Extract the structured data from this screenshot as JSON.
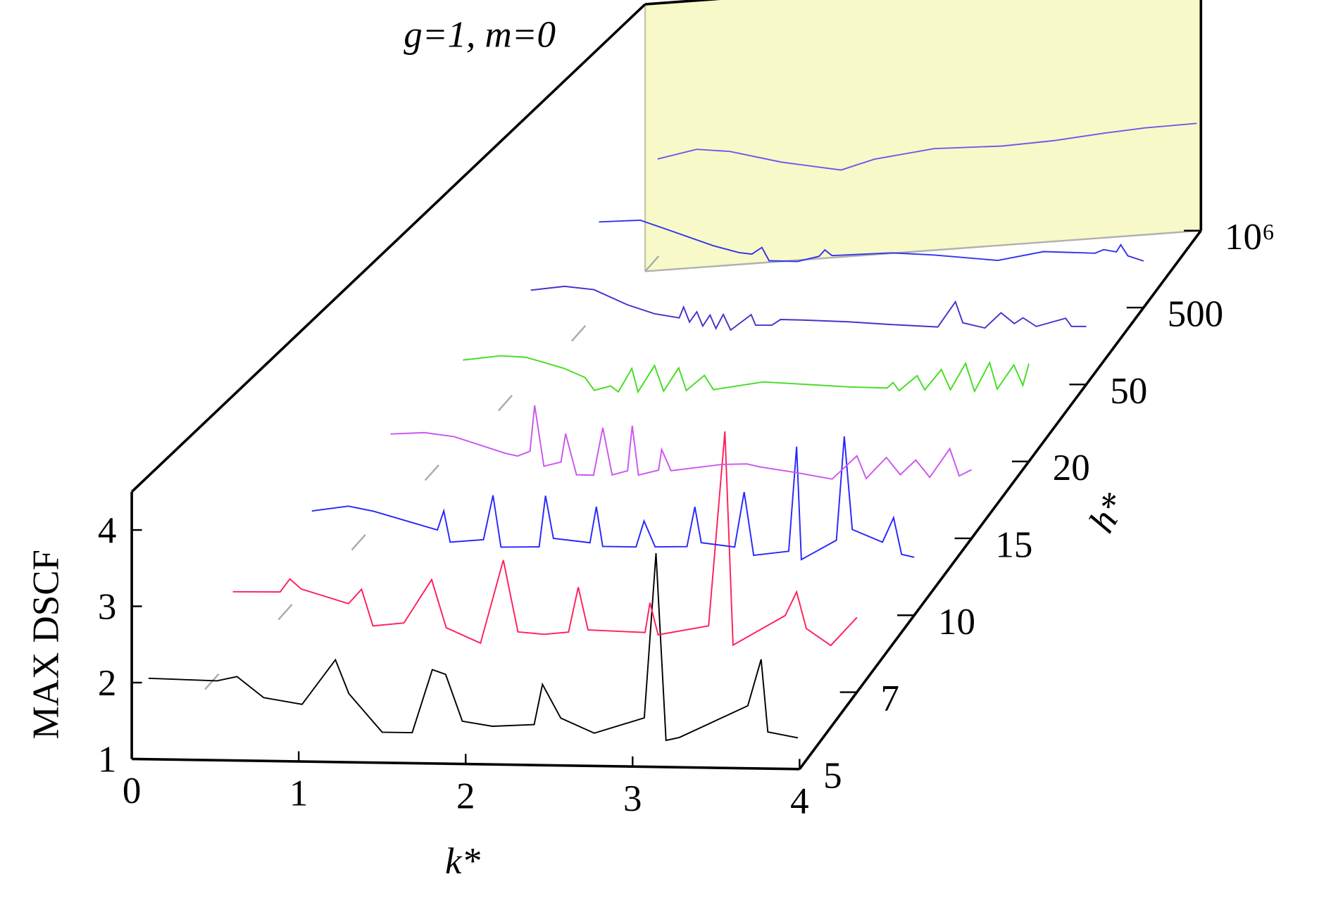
{
  "chart_data": {
    "type": "waterfall",
    "title": "g=1, m=0",
    "x_label": "k*",
    "y_label": "MAX DSCF",
    "z_label": "h*",
    "xlim": [
      0,
      4
    ],
    "xticks": [
      0,
      1,
      2,
      3,
      4
    ],
    "ylim": [
      1,
      4.5
    ],
    "yticks": [
      1,
      2,
      3,
      4
    ],
    "zcategories": [
      "5",
      "7",
      "10",
      "15",
      "20",
      "50",
      "500",
      "10⁶"
    ],
    "back_wall_color": "#f7f9c8",
    "series": [
      {
        "color": "#000000",
        "x": [
          0.1,
          0.51,
          0.63,
          0.79,
          1.02,
          1.22,
          1.3,
          1.5,
          1.68,
          1.8,
          1.88,
          1.98,
          2.16,
          2.41,
          2.46,
          2.57,
          2.77,
          3.07,
          3.14,
          3.2,
          3.28,
          3.69,
          3.77,
          3.81,
          3.99
        ],
        "values": [
          2.06,
          2.04,
          2.1,
          1.83,
          1.75,
          2.34,
          1.9,
          1.4,
          1.4,
          2.23,
          2.17,
          1.56,
          1.5,
          1.53,
          2.06,
          1.62,
          1.43,
          1.64,
          3.8,
          1.35,
          1.39,
          1.82,
          2.43,
          1.48,
          1.41
        ]
      },
      {
        "color": "#ff1f5a",
        "x": [
          0.17,
          0.46,
          0.52,
          0.59,
          0.88,
          0.96,
          1.03,
          1.22,
          1.39,
          1.48,
          1.69,
          1.83,
          1.92,
          2.08,
          2.23,
          2.29,
          2.35,
          2.7,
          2.73,
          2.78,
          3.09,
          3.19,
          3.24,
          3.56,
          3.63,
          3.69,
          3.84,
          4.0
        ],
        "values": [
          2.28,
          2.28,
          2.45,
          2.32,
          2.13,
          2.32,
          1.84,
          1.88,
          2.45,
          1.82,
          1.62,
          2.71,
          1.77,
          1.74,
          1.77,
          2.36,
          1.8,
          1.77,
          2.16,
          1.74,
          1.86,
          4.41,
          1.61,
          2.0,
          2.31,
          1.83,
          1.61,
          1.98
        ]
      },
      {
        "color": "#2626ff",
        "x": [
          0.21,
          0.44,
          0.6,
          1.0,
          1.04,
          1.08,
          1.29,
          1.35,
          1.4,
          1.64,
          1.68,
          1.73,
          1.96,
          2.0,
          2.04,
          2.25,
          2.3,
          2.37,
          2.57,
          2.62,
          2.66,
          2.87,
          2.93,
          2.99,
          3.21,
          3.26,
          3.29,
          3.51,
          3.56,
          3.61,
          3.8,
          3.87,
          3.92,
          4.0
        ],
        "values": [
          2.42,
          2.48,
          2.41,
          2.16,
          2.41,
          2.0,
          2.03,
          2.61,
          1.93,
          1.93,
          2.6,
          2.04,
          1.98,
          2.45,
          1.93,
          1.92,
          2.26,
          1.92,
          1.92,
          2.44,
          1.97,
          1.91,
          2.63,
          1.8,
          1.85,
          3.22,
          1.74,
          1.99,
          3.35,
          2.13,
          1.96,
          2.28,
          1.8,
          1.76
        ]
      },
      {
        "color": "#cc55ee",
        "x": [
          0.25,
          0.47,
          0.66,
          0.99,
          1.07,
          1.15,
          1.18,
          1.24,
          1.35,
          1.38,
          1.45,
          1.56,
          1.62,
          1.68,
          1.78,
          1.81,
          1.85,
          1.98,
          2.0,
          2.06,
          2.39,
          2.55,
          2.63,
          2.88,
          3.1,
          3.26,
          3.32,
          3.45,
          3.54,
          3.64,
          3.73,
          3.86,
          3.92,
          4.0
        ],
        "values": [
          2.51,
          2.52,
          2.46,
          2.23,
          2.19,
          2.25,
          2.85,
          2.05,
          2.1,
          2.47,
          1.93,
          1.92,
          2.54,
          1.92,
          1.97,
          2.56,
          1.91,
          1.97,
          2.24,
          1.96,
          2.03,
          2.03,
          1.99,
          1.9,
          1.81,
          2.11,
          1.81,
          2.08,
          1.85,
          2.04,
          1.81,
          2.18,
          1.82,
          1.9
        ]
      },
      {
        "color": "#44dd22",
        "x": [
          0.25,
          0.5,
          0.67,
          0.92,
          1.06,
          1.12,
          1.23,
          1.28,
          1.37,
          1.41,
          1.52,
          1.58,
          1.68,
          1.73,
          1.85,
          1.91,
          2.24,
          2.81,
          3.06,
          3.1,
          3.14,
          3.26,
          3.31,
          3.42,
          3.48,
          3.58,
          3.64,
          3.74,
          3.79,
          3.9,
          3.96,
          4.0
        ],
        "values": [
          2.56,
          2.6,
          2.57,
          2.41,
          2.28,
          2.11,
          2.16,
          2.08,
          2.38,
          2.07,
          2.41,
          2.07,
          2.37,
          2.07,
          2.26,
          2.07,
          2.15,
          2.05,
          2.02,
          2.09,
          1.98,
          2.17,
          1.98,
          2.24,
          1.97,
          2.31,
          1.94,
          2.31,
          1.96,
          2.27,
          2.0,
          2.28
        ]
      },
      {
        "color": "#4433cc",
        "x": [
          0.22,
          0.45,
          0.65,
          0.88,
          1.06,
          1.23,
          1.26,
          1.3,
          1.35,
          1.39,
          1.44,
          1.48,
          1.53,
          1.58,
          1.72,
          1.75,
          1.86,
          1.92,
          2.07,
          2.38,
          2.67,
          2.99,
          3.11,
          3.16,
          3.31,
          3.42,
          3.51,
          3.57,
          3.66,
          3.86,
          3.9,
          4.0
        ],
        "values": [
          2.56,
          2.59,
          2.53,
          2.31,
          2.18,
          2.11,
          2.25,
          2.05,
          2.18,
          1.99,
          2.13,
          1.95,
          2.13,
          1.92,
          2.11,
          1.97,
          1.96,
          2.03,
          2.01,
          1.96,
          1.9,
          1.84,
          2.16,
          1.88,
          1.8,
          1.99,
          1.84,
          1.91,
          1.79,
          1.88,
          1.77,
          1.76
        ]
      },
      {
        "color": "#3333ee",
        "x": [
          0.19,
          0.48,
          0.69,
          0.99,
          1.17,
          1.26,
          1.33,
          1.38,
          1.58,
          1.73,
          1.77,
          1.82,
          2.24,
          2.53,
          2.98,
          3.3,
          3.66,
          3.72,
          3.81,
          3.84,
          3.89,
          4.0
        ],
        "values": [
          2.54,
          2.53,
          2.37,
          2.14,
          2.03,
          2.0,
          2.08,
          1.9,
          1.87,
          1.92,
          2.0,
          1.92,
          1.91,
          1.85,
          1.73,
          1.81,
          1.75,
          1.79,
          1.75,
          1.84,
          1.69,
          1.61
        ]
      },
      {
        "color": "#7755ee",
        "x": [
          0.09,
          0.37,
          0.61,
          0.98,
          1.41,
          1.65,
          2.08,
          2.57,
          2.94,
          3.3,
          3.6,
          3.97
        ],
        "values": [
          2.46,
          2.55,
          2.49,
          2.3,
          2.14,
          2.25,
          2.33,
          2.3,
          2.32,
          2.37,
          2.4,
          2.41
        ]
      }
    ]
  }
}
